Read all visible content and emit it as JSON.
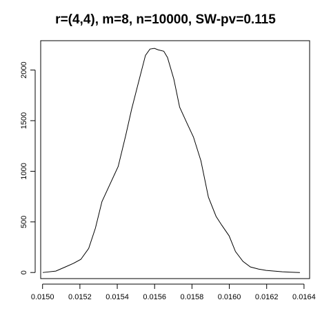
{
  "chart_data": {
    "type": "line",
    "title": "r=(4,4), m=8, n=10000, SW-pv=0.115",
    "xlabel": "",
    "ylabel": "",
    "xlim": [
      0.01499,
      0.01643
    ],
    "ylim": [
      -60,
      2290
    ],
    "x_ticks": [
      0.015,
      0.0152,
      0.0154,
      0.0156,
      0.0158,
      0.016,
      0.0162,
      0.0164
    ],
    "x_tick_labels": [
      "0.0150",
      "0.0152",
      "0.0154",
      "0.0156",
      "0.0158",
      "0.0160",
      "0.0162",
      "0.0164"
    ],
    "y_ticks": [
      0,
      500,
      1000,
      1500,
      2000
    ],
    "y_tick_labels": [
      "0",
      "500",
      "1000",
      "1500",
      "2000"
    ],
    "grid": false,
    "legend": "none",
    "series": [
      {
        "color": "#000000",
        "x": [
          0.015001,
          0.015071,
          0.015122,
          0.015165,
          0.015205,
          0.015247,
          0.015283,
          0.015318,
          0.015362,
          0.015405,
          0.015445,
          0.015477,
          0.015521,
          0.015551,
          0.015575,
          0.015599,
          0.015619,
          0.015649,
          0.015669,
          0.015703,
          0.015734,
          0.015774,
          0.015808,
          0.015848,
          0.015888,
          0.015929,
          0.015959,
          0.015999,
          0.016033,
          0.016073,
          0.016113,
          0.016157,
          0.016197,
          0.016241,
          0.016284,
          0.016331,
          0.016378
        ],
        "y": [
          0,
          14,
          55,
          90,
          130,
          238,
          438,
          700,
          876,
          1048,
          1352,
          1614,
          1931,
          2145,
          2207,
          2214,
          2200,
          2186,
          2124,
          1910,
          1634,
          1472,
          1338,
          1103,
          745,
          555,
          469,
          362,
          207,
          110,
          55,
          34,
          21,
          14,
          7,
          3,
          0
        ]
      }
    ]
  }
}
